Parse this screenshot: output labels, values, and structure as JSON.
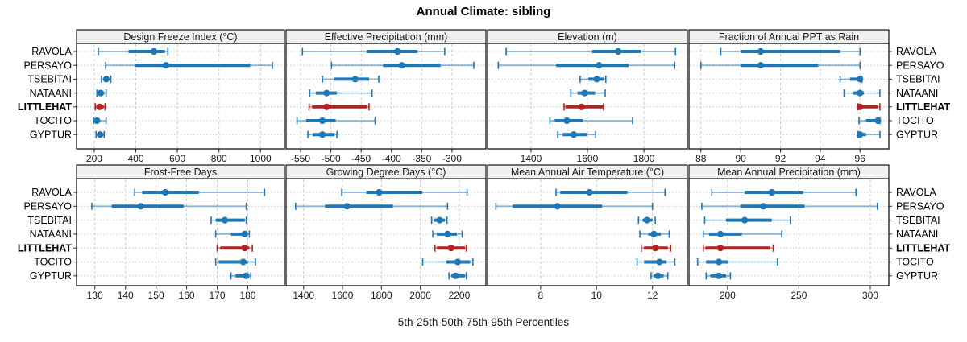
{
  "header": {
    "title": "Annual Climate: sibling"
  },
  "footer": {
    "caption": "5th-25th-50th-75th-95th Percentiles"
  },
  "sites": [
    "RAVOLA",
    "PERSAYO",
    "TSEBITAI",
    "NATAANI",
    "LITTLEHAT",
    "TOCITO",
    "GYPTUR"
  ],
  "highlight_site": "LITTLEHAT",
  "colors": {
    "series": "#1f77b4",
    "highlight": "#b22222",
    "strip_bg": "#f0f0f0",
    "grid": "#c9c9c9",
    "border": "#000000",
    "tick_text": "#1a1a1a"
  },
  "chart_data": {
    "type": "dot-whisker-trellis",
    "percentiles": [
      5,
      25,
      50,
      75,
      95
    ],
    "legend": "none",
    "grid": "dashed vertical at ticks, dotted horizontal per site row",
    "panels": [
      {
        "grid_row": 0,
        "title": "Design Freeze Index (°C)",
        "ticks": [
          200,
          400,
          600,
          800,
          1000
        ],
        "xlim": [
          115,
          1115
        ],
        "series": [
          [
            220,
            365,
            487,
            540,
            554
          ],
          [
            255,
            395,
            545,
            950,
            1057
          ],
          [
            235,
            248,
            258,
            272,
            280
          ],
          [
            213,
            222,
            231,
            248,
            257
          ],
          [
            205,
            210,
            226,
            246,
            252
          ],
          [
            196,
            203,
            213,
            228,
            257
          ],
          [
            209,
            218,
            228,
            244,
            248
          ]
        ]
      },
      {
        "grid_row": 0,
        "title": "Effective Precipitation (mm)",
        "ticks": [
          -550,
          -500,
          -450,
          -400,
          -350,
          -300
        ],
        "xlim": [
          -574,
          -244
        ],
        "series": [
          [
            -547,
            -441,
            -390,
            -357,
            -312
          ],
          [
            -499,
            -414,
            -383,
            -319,
            -264
          ],
          [
            -514,
            -494,
            -460,
            -437,
            -421
          ],
          [
            -535,
            -525,
            -507,
            -490,
            -432
          ],
          [
            -536,
            -531,
            -507,
            -440,
            -437
          ],
          [
            -556,
            -541,
            -514,
            -492,
            -427
          ],
          [
            -538,
            -530,
            -514,
            -494,
            -490
          ]
        ]
      },
      {
        "grid_row": 0,
        "title": "Elevation (m)",
        "ticks": [
          1400,
          1600,
          1800
        ],
        "xlim": [
          1246,
          1954
        ],
        "series": [
          [
            1312,
            1617,
            1709,
            1789,
            1912
          ],
          [
            1284,
            1489,
            1641,
            1746,
            1909
          ],
          [
            1574,
            1603,
            1633,
            1660,
            1665
          ],
          [
            1541,
            1565,
            1590,
            1627,
            1663
          ],
          [
            1517,
            1522,
            1579,
            1655,
            1657
          ],
          [
            1467,
            1484,
            1527,
            1584,
            1760
          ],
          [
            1495,
            1512,
            1551,
            1598,
            1629
          ]
        ]
      },
      {
        "grid_row": 0,
        "title": "Fraction of Annual PPT as Rain",
        "ticks": [
          88,
          90,
          92,
          94,
          96
        ],
        "xlim": [
          87.4,
          97.45
        ],
        "series": [
          [
            89.0,
            90.0,
            91.0,
            95.0,
            96.0
          ],
          [
            88.0,
            90.0,
            91.0,
            93.9,
            96.0
          ],
          [
            95.0,
            95.5,
            96.0,
            96.05,
            96.1
          ],
          [
            95.2,
            95.65,
            96.0,
            96.2,
            97.0
          ],
          [
            95.9,
            95.95,
            96.0,
            96.9,
            97.0
          ],
          [
            95.95,
            96.3,
            96.9,
            96.95,
            97.0
          ],
          [
            95.9,
            95.95,
            96.0,
            96.3,
            97.0
          ]
        ]
      },
      {
        "grid_row": 1,
        "title": "Frost-Free Days",
        "ticks": [
          130,
          140,
          150,
          160,
          170,
          180
        ],
        "xlim": [
          124,
          192
        ],
        "series": [
          [
            143,
            145.5,
            153,
            164,
            185.5
          ],
          [
            129,
            135.5,
            145,
            159,
            179.5
          ],
          [
            168,
            169.5,
            172.5,
            179,
            179.5
          ],
          [
            169.5,
            174.5,
            179,
            180,
            180.5
          ],
          [
            170,
            171,
            179,
            180.5,
            181.5
          ],
          [
            169.5,
            170.5,
            178.5,
            180,
            182.5
          ],
          [
            174.5,
            176,
            179.5,
            180.5,
            181
          ]
        ]
      },
      {
        "grid_row": 1,
        "title": "Growing Degree Days (°C)",
        "ticks": [
          1400,
          1600,
          1800,
          2000,
          2200
        ],
        "xlim": [
          1310,
          2337
        ],
        "series": [
          [
            1596,
            1722,
            1788,
            2010,
            2240
          ],
          [
            1359,
            1510,
            1623,
            1859,
            2140
          ],
          [
            2058,
            2071,
            2099,
            2126,
            2137
          ],
          [
            2064,
            2085,
            2140,
            2188,
            2215
          ],
          [
            2075,
            2085,
            2158,
            2229,
            2236
          ],
          [
            2012,
            2133,
            2192,
            2256,
            2270
          ],
          [
            2147,
            2160,
            2181,
            2229,
            2236
          ]
        ]
      },
      {
        "grid_row": 1,
        "title": "Mean Annual Air Temperature (°C)",
        "ticks": [
          8,
          10,
          12
        ],
        "xlim": [
          6.1,
          13.25
        ],
        "series": [
          [
            8.55,
            8.7,
            9.75,
            11.1,
            12.45
          ],
          [
            6.4,
            7.0,
            8.6,
            10.2,
            12.0
          ],
          [
            11.5,
            11.65,
            11.8,
            12.0,
            12.1
          ],
          [
            11.55,
            11.85,
            12.05,
            12.3,
            12.6
          ],
          [
            11.6,
            11.7,
            12.1,
            12.55,
            12.65
          ],
          [
            11.45,
            11.7,
            12.25,
            12.5,
            12.8
          ],
          [
            11.95,
            12.05,
            12.2,
            12.4,
            12.55
          ]
        ]
      },
      {
        "grid_row": 1,
        "title": "Mean Annual Precipitation (mm)",
        "ticks": [
          200,
          250,
          300
        ],
        "xlim": [
          173,
          313
        ],
        "series": [
          [
            189,
            212,
            231,
            253,
            290
          ],
          [
            182,
            209,
            225,
            254,
            305
          ],
          [
            184,
            199,
            212,
            231,
            244
          ],
          [
            183,
            187,
            195,
            210,
            238
          ],
          [
            183,
            184.5,
            195,
            230,
            232
          ],
          [
            179,
            185,
            194,
            200.5,
            235
          ],
          [
            185,
            188,
            194,
            199,
            202
          ]
        ]
      }
    ]
  }
}
